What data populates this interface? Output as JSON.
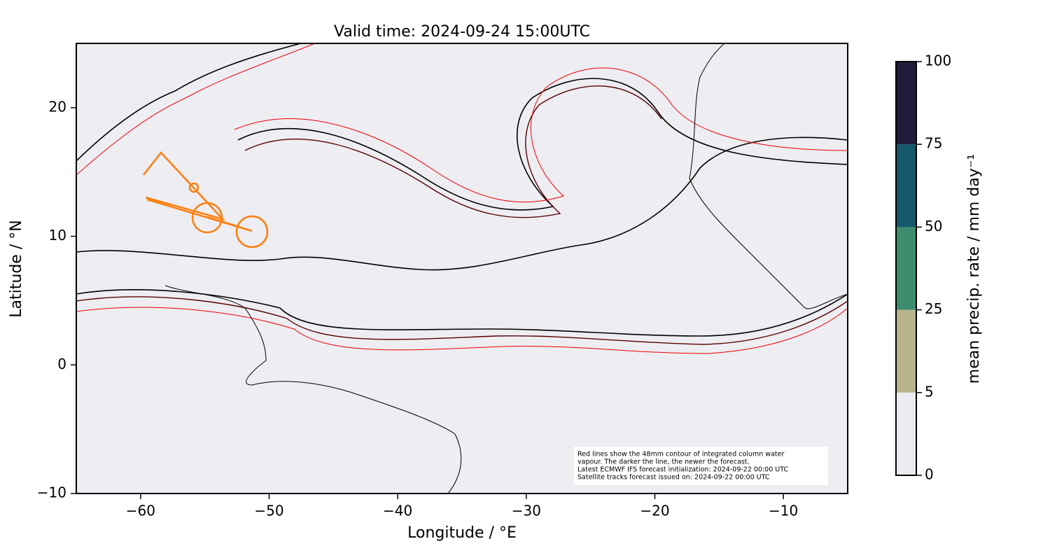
{
  "chart_data": {
    "type": "map",
    "title": "Valid time: 2024-09-24 15:00UTC",
    "xlabel": "Longitude / °E",
    "ylabel": "Latitude / °N",
    "xlim": [
      -65,
      -5
    ],
    "ylim": [
      -10,
      25
    ],
    "xticks": [
      {
        "value": -60,
        "label": "−60"
      },
      {
        "value": -50,
        "label": "−50"
      },
      {
        "value": -40,
        "label": "−40"
      },
      {
        "value": -30,
        "label": "−30"
      },
      {
        "value": -20,
        "label": "−20"
      },
      {
        "value": -10,
        "label": "−10"
      }
    ],
    "yticks": [
      {
        "value": -10,
        "label": "−10"
      },
      0,
      10,
      20
    ],
    "colorbar": {
      "label": "mean precip. rate / mm day⁻¹",
      "levels": [
        0,
        5,
        25,
        50,
        75,
        100
      ],
      "colors": [
        "#ecebf1",
        "#b7b48c",
        "#3e8c6e",
        "#14586a",
        "#201d3a"
      ]
    },
    "annotation": [
      "Red lines show the 48mm contour of integrated column water",
      "vapour. The darker the line, the newer the forecast.",
      "Latest ECMWF IFS forecast initialization: 2024-09-22 00:00 UTC",
      "Satellite tracks forecast issued on: 2024-09-22 00:00 UTC"
    ]
  }
}
